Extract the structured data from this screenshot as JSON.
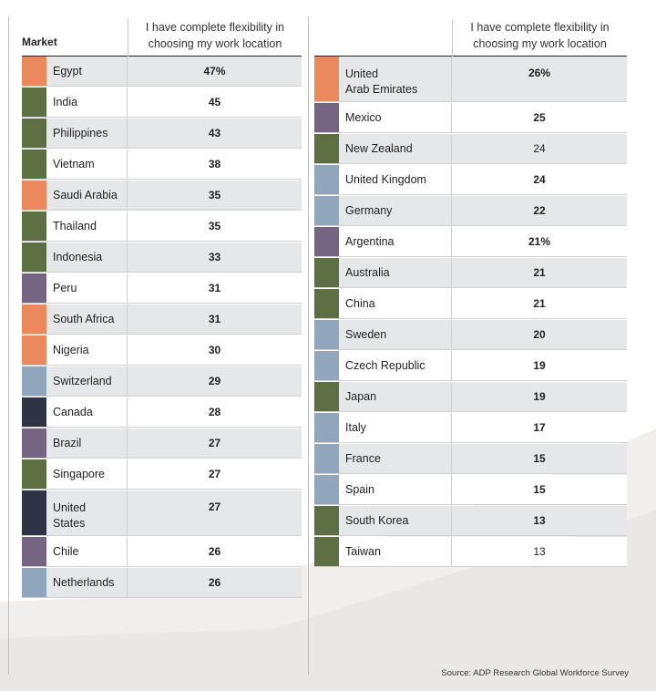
{
  "header": {
    "market_label": "Market",
    "column_label_left": "I have complete flexibility in choosing my work location",
    "column_label_right": "I have complete flexibility in choosing my work location"
  },
  "colors": {
    "orange": "#ea8a5c",
    "green": "#5b6f42",
    "purple": "#756582",
    "blue": "#8fa6bc",
    "navy": "#2f3344",
    "row_shaded": "#e6e7e9",
    "row_plain": "#ffffff"
  },
  "chart_data": {
    "type": "table",
    "columns": [
      "Market",
      "I have complete flexibility in choosing my work location"
    ],
    "rows": [
      {
        "market": "Egypt",
        "value": "47%",
        "color": "orange"
      },
      {
        "market": "India",
        "value": "45",
        "color": "green"
      },
      {
        "market": "Philippines",
        "value": "43",
        "color": "green"
      },
      {
        "market": "Vietnam",
        "value": "38",
        "color": "green"
      },
      {
        "market": "Saudi Arabia",
        "value": "35",
        "color": "orange"
      },
      {
        "market": "Thailand",
        "value": "35",
        "color": "green"
      },
      {
        "market": "Indonesia",
        "value": "33",
        "color": "green"
      },
      {
        "market": "Peru",
        "value": "31",
        "color": "purple"
      },
      {
        "market": "South Africa",
        "value": "31",
        "color": "orange"
      },
      {
        "market": "Nigeria",
        "value": "30",
        "color": "orange"
      },
      {
        "market": "Switzerland",
        "value": "29",
        "color": "blue"
      },
      {
        "market": "Canada",
        "value": "28",
        "color": "navy"
      },
      {
        "market": "Brazil",
        "value": "27",
        "color": "purple"
      },
      {
        "market": "Singapore",
        "value": "27",
        "color": "green"
      },
      {
        "market": "United States",
        "value": "27",
        "color": "navy"
      },
      {
        "market": "Chile",
        "value": "26",
        "color": "purple"
      },
      {
        "market": "Netherlands",
        "value": "26",
        "color": "blue"
      },
      {
        "market": "United Arab Emirates",
        "value": "26%",
        "color": "orange"
      },
      {
        "market": "Mexico",
        "value": "25",
        "color": "purple"
      },
      {
        "market": "New Zealand",
        "value": "24",
        "color": "green"
      },
      {
        "market": "United Kingdom",
        "value": "24",
        "color": "blue"
      },
      {
        "market": "Germany",
        "value": "22",
        "color": "blue"
      },
      {
        "market": "Argentina",
        "value": "21%",
        "color": "purple"
      },
      {
        "market": "Australia",
        "value": "21",
        "color": "green"
      },
      {
        "market": "China",
        "value": "21",
        "color": "green"
      },
      {
        "market": "Sweden",
        "value": "20",
        "color": "blue"
      },
      {
        "market": "Czech Republic",
        "value": "19",
        "color": "blue"
      },
      {
        "market": "Japan",
        "value": "19",
        "color": "green"
      },
      {
        "market": "Italy",
        "value": "17",
        "color": "blue"
      },
      {
        "market": "France",
        "value": "15",
        "color": "blue"
      },
      {
        "market": "Spain",
        "value": "15",
        "color": "blue"
      },
      {
        "market": "South Korea",
        "value": "13",
        "color": "green"
      },
      {
        "market": "Taiwan",
        "value": "13",
        "color": "green"
      }
    ]
  },
  "left_table": [
    {
      "name": [
        "Egypt"
      ],
      "value": "47%",
      "color": "orange",
      "shaded": true,
      "bold": true
    },
    {
      "name": [
        "India"
      ],
      "value": "45",
      "color": "green",
      "shaded": false,
      "bold": true
    },
    {
      "name": [
        "Philippines"
      ],
      "value": "43",
      "color": "green",
      "shaded": true,
      "bold": true
    },
    {
      "name": [
        "Vietnam"
      ],
      "value": "38",
      "color": "green",
      "shaded": false,
      "bold": true
    },
    {
      "name": [
        "Saudi Arabia"
      ],
      "value": "35",
      "color": "orange",
      "shaded": true,
      "bold": true
    },
    {
      "name": [
        "Thailand"
      ],
      "value": "35",
      "color": "green",
      "shaded": false,
      "bold": true
    },
    {
      "name": [
        "Indonesia"
      ],
      "value": "33",
      "color": "green",
      "shaded": true,
      "bold": true
    },
    {
      "name": [
        "Peru"
      ],
      "value": "31",
      "color": "purple",
      "shaded": false,
      "bold": true
    },
    {
      "name": [
        "South Africa"
      ],
      "value": "31",
      "color": "orange",
      "shaded": true,
      "bold": true
    },
    {
      "name": [
        "Nigeria"
      ],
      "value": "30",
      "color": "orange",
      "shaded": false,
      "bold": true
    },
    {
      "name": [
        "Switzerland"
      ],
      "value": "29",
      "color": "blue",
      "shaded": true,
      "bold": true
    },
    {
      "name": [
        "Canada"
      ],
      "value": "28",
      "color": "navy",
      "shaded": false,
      "bold": true
    },
    {
      "name": [
        "Brazil"
      ],
      "value": "27",
      "color": "purple",
      "shaded": true,
      "bold": true
    },
    {
      "name": [
        "Singapore"
      ],
      "value": "27",
      "color": "green",
      "shaded": false,
      "bold": true
    },
    {
      "name": [
        "United",
        "States"
      ],
      "value": "27",
      "color": "navy",
      "shaded": true,
      "bold": true
    },
    {
      "name": [
        "Chile"
      ],
      "value": "26",
      "color": "purple",
      "shaded": false,
      "bold": true
    },
    {
      "name": [
        "Netherlands"
      ],
      "value": "26",
      "color": "blue",
      "shaded": true,
      "bold": true
    }
  ],
  "right_table": [
    {
      "name": [
        "United",
        "Arab Emirates"
      ],
      "value": "26%",
      "color": "orange",
      "shaded": true,
      "bold": true
    },
    {
      "name": [
        "Mexico"
      ],
      "value": "25",
      "color": "purple",
      "shaded": false,
      "bold": true
    },
    {
      "name": [
        "New Zealand"
      ],
      "value": "24",
      "color": "green",
      "shaded": true,
      "bold": false
    },
    {
      "name": [
        "United Kingdom"
      ],
      "value": "24",
      "color": "blue",
      "shaded": false,
      "bold": true
    },
    {
      "name": [
        "Germany"
      ],
      "value": "22",
      "color": "blue",
      "shaded": true,
      "bold": true
    },
    {
      "name": [
        "Argentina"
      ],
      "value": "21%",
      "color": "purple",
      "shaded": false,
      "bold": true
    },
    {
      "name": [
        "Australia"
      ],
      "value": "21",
      "color": "green",
      "shaded": true,
      "bold": true
    },
    {
      "name": [
        "China"
      ],
      "value": "21",
      "color": "green",
      "shaded": false,
      "bold": true
    },
    {
      "name": [
        "Sweden"
      ],
      "value": "20",
      "color": "blue",
      "shaded": true,
      "bold": true
    },
    {
      "name": [
        "Czech Republic"
      ],
      "value": "19",
      "color": "blue",
      "shaded": false,
      "bold": true
    },
    {
      "name": [
        "Japan"
      ],
      "value": "19",
      "color": "green",
      "shaded": true,
      "bold": true
    },
    {
      "name": [
        "Italy"
      ],
      "value": "17",
      "color": "blue",
      "shaded": false,
      "bold": true
    },
    {
      "name": [
        "France"
      ],
      "value": "15",
      "color": "blue",
      "shaded": true,
      "bold": true
    },
    {
      "name": [
        "Spain"
      ],
      "value": "15",
      "color": "blue",
      "shaded": false,
      "bold": true
    },
    {
      "name": [
        "South Korea"
      ],
      "value": "13",
      "color": "green",
      "shaded": true,
      "bold": true
    },
    {
      "name": [
        "Taiwan"
      ],
      "value": "13",
      "color": "green",
      "shaded": false,
      "bold": false
    }
  ],
  "source": "Source: ADP Research Global Workforce Survey"
}
